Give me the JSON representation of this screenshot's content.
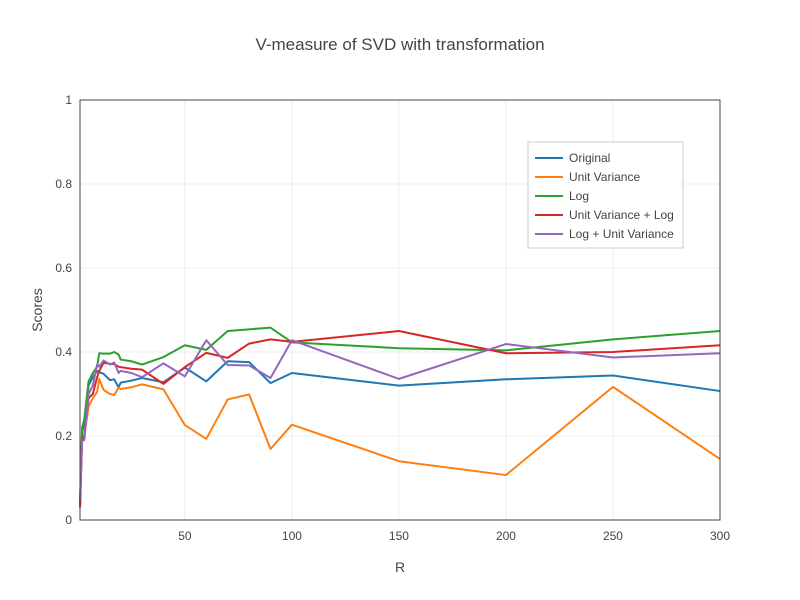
{
  "chart_data": {
    "type": "line",
    "title": "V-measure of SVD with transformation",
    "xlabel": "R",
    "ylabel": "Scores",
    "xlim": [
      1,
      300
    ],
    "ylim": [
      0,
      1
    ],
    "xticks": [
      50,
      100,
      150,
      200,
      250,
      300
    ],
    "yticks": [
      0,
      0.2,
      0.4,
      0.6,
      0.8,
      1
    ],
    "ytick_labels": [
      "0",
      "0.2",
      "0.4",
      "0.6",
      "0.8",
      "1"
    ],
    "grid": true,
    "legend_position": "top-right",
    "x": [
      1,
      2,
      3,
      5,
      7,
      9,
      10,
      12,
      15,
      17,
      19,
      20,
      25,
      30,
      40,
      50,
      60,
      70,
      80,
      90,
      100,
      150,
      200,
      250,
      300
    ],
    "series": [
      {
        "name": "Original",
        "color": "#1f77b4",
        "values": [
          0.03,
          0.21,
          0.23,
          0.32,
          0.34,
          0.355,
          0.352,
          0.348,
          0.333,
          0.335,
          0.316,
          0.327,
          0.332,
          0.338,
          0.328,
          0.363,
          0.33,
          0.378,
          0.376,
          0.326,
          0.35,
          0.32,
          0.335,
          0.344,
          0.307
        ]
      },
      {
        "name": "Unit Variance",
        "color": "#ff7f0e",
        "values": [
          0.03,
          0.2,
          0.2,
          0.27,
          0.29,
          0.305,
          0.336,
          0.31,
          0.3,
          0.298,
          0.315,
          0.312,
          0.316,
          0.323,
          0.311,
          0.226,
          0.193,
          0.287,
          0.299,
          0.169,
          0.227,
          0.14,
          0.107,
          0.317,
          0.145
        ]
      },
      {
        "name": "Log",
        "color": "#2ca02c",
        "values": [
          0.04,
          0.22,
          0.24,
          0.33,
          0.35,
          0.365,
          0.397,
          0.396,
          0.396,
          0.4,
          0.394,
          0.382,
          0.378,
          0.37,
          0.388,
          0.416,
          0.405,
          0.45,
          0.454,
          0.458,
          0.423,
          0.409,
          0.404,
          0.43,
          0.45
        ]
      },
      {
        "name": "Unit Variance + Log",
        "color": "#d62728",
        "values": [
          0.03,
          0.19,
          0.2,
          0.29,
          0.3,
          0.34,
          0.355,
          0.374,
          0.372,
          0.371,
          0.365,
          0.364,
          0.36,
          0.358,
          0.324,
          0.364,
          0.398,
          0.386,
          0.42,
          0.43,
          0.424,
          0.45,
          0.397,
          0.4,
          0.416
        ]
      },
      {
        "name": "Log + Unit Variance",
        "color": "#9467bd",
        "values": [
          0.05,
          0.19,
          0.19,
          0.3,
          0.32,
          0.37,
          0.365,
          0.38,
          0.37,
          0.375,
          0.35,
          0.355,
          0.35,
          0.34,
          0.373,
          0.342,
          0.428,
          0.369,
          0.368,
          0.338,
          0.428,
          0.336,
          0.419,
          0.387,
          0.397
        ]
      }
    ]
  }
}
